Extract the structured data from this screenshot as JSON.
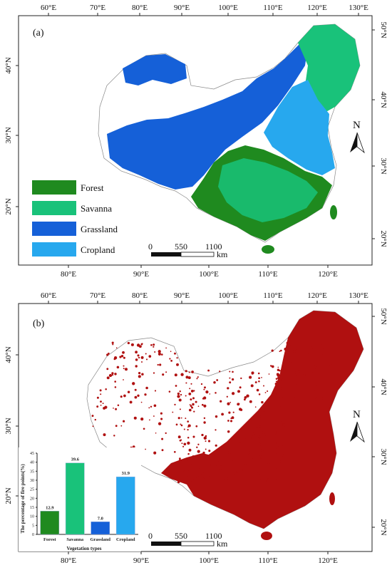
{
  "panel_a": {
    "letter": "(a)",
    "legend": [
      {
        "label": "Forest",
        "color": "#1f8a1f"
      },
      {
        "label": "Savanna",
        "color": "#19c27a"
      },
      {
        "label": "Grassland",
        "color": "#1560d8"
      },
      {
        "label": "Cropland",
        "color": "#27a8ee"
      }
    ],
    "scale": {
      "ticks": [
        "0",
        "550",
        "1100"
      ],
      "unit": "km"
    },
    "north": "N"
  },
  "panel_b": {
    "letter": "(b)",
    "fire_color": "#b01010",
    "scale": {
      "ticks": [
        "0",
        "550",
        "1100"
      ],
      "unit": "km"
    },
    "north": "N"
  },
  "axes": {
    "top_lon": [
      "60°E",
      "70°E",
      "80°E",
      "90°E",
      "100°E",
      "110°E",
      "120°E",
      "130°E"
    ],
    "bottom_lon": [
      "80°E",
      "90°E",
      "100°E",
      "110°E",
      "120°E"
    ],
    "left_lat": [
      "40°N",
      "30°N",
      "20°N"
    ],
    "right_lat": [
      "50°N",
      "40°N",
      "30°N",
      "20°N"
    ]
  },
  "chart_data": {
    "type": "bar",
    "categories": [
      "Forest",
      "Savanna",
      "Grassland",
      "Cropland"
    ],
    "values": [
      12.9,
      39.6,
      7.0,
      31.9
    ],
    "value_labels": [
      "12.9",
      "39.6",
      "7.0",
      "31.9"
    ],
    "colors": [
      "#1f8a1f",
      "#19c27a",
      "#1560d8",
      "#27a8ee"
    ],
    "xlabel": "Vegetation types",
    "ylabel": "The percentage of fire points(%)",
    "ylim": [
      0,
      45
    ],
    "yticks": [
      "0",
      "5",
      "10",
      "15",
      "20",
      "25",
      "30",
      "35",
      "40",
      "45"
    ]
  }
}
